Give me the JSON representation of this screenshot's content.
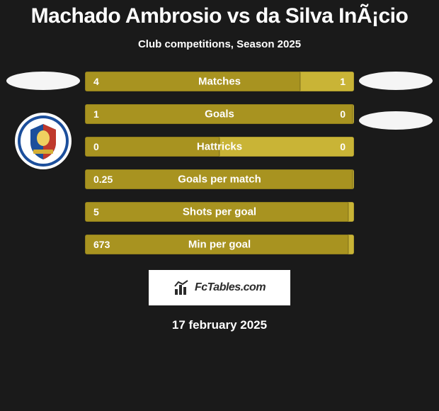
{
  "title": {
    "text": "Machado Ambrosio vs da Silva InÃ¡cio",
    "fontsize": 30,
    "color": "#ffffff"
  },
  "subtitle": {
    "text": "Club competitions, Season 2025",
    "fontsize": 15,
    "color": "#ffffff"
  },
  "colors": {
    "background": "#1a1a1a",
    "bar_primary": "#a89320",
    "bar_secondary": "#c9b436",
    "ellipse": "#f5f5f5",
    "text": "#ffffff",
    "crest_ring": "#ffffff",
    "crest_blue": "#1c4f9c",
    "crest_red": "#c0392b",
    "brand_box_bg": "#ffffff",
    "brand_text": "#2b2b2b"
  },
  "bars": [
    {
      "label": "Matches",
      "left": "4",
      "right": "1",
      "left_pct": 80,
      "right_pct": 20
    },
    {
      "label": "Goals",
      "left": "1",
      "right": "0",
      "left_pct": 100,
      "right_pct": 0
    },
    {
      "label": "Hattricks",
      "left": "0",
      "right": "0",
      "left_pct": 50,
      "right_pct": 50
    },
    {
      "label": "Goals per match",
      "left": "0.25",
      "right": "",
      "left_pct": 100,
      "right_pct": 0
    },
    {
      "label": "Shots per goal",
      "left": "5",
      "right": "",
      "left_pct": 98,
      "right_pct": 2
    },
    {
      "label": "Min per goal",
      "left": "673",
      "right": "",
      "left_pct": 98,
      "right_pct": 2
    }
  ],
  "brand": {
    "text": "FcTables.com",
    "fontsize": 16
  },
  "date": {
    "text": "17 february 2025"
  }
}
